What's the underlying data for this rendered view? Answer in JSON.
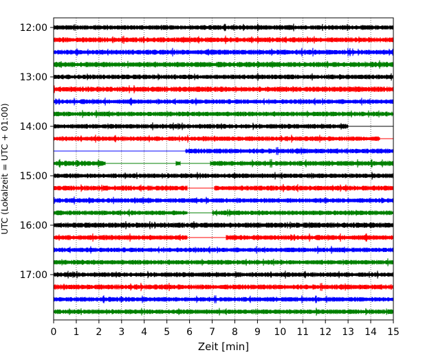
{
  "chart_data": {
    "type": "line",
    "title": "",
    "xlabel": "Zeit  [min]",
    "ylabel": "UTC (Lokalzeit = UTC + 01:00)",
    "xlim": [
      0,
      15
    ],
    "x_ticks": [
      "0",
      "1",
      "2",
      "3",
      "4",
      "5",
      "6",
      "7",
      "8",
      "9",
      "10",
      "11",
      "12",
      "13",
      "14",
      "15"
    ],
    "y_ticks": [
      {
        "label": "12:00",
        "row": 0
      },
      {
        "label": "13:00",
        "row": 4
      },
      {
        "label": "14:00",
        "row": 8
      },
      {
        "label": "15:00",
        "row": 12
      },
      {
        "label": "16:00",
        "row": 16
      },
      {
        "label": "17:00",
        "row": 20
      }
    ],
    "grid": "vertical dotted",
    "colors": [
      "#000000",
      "#ff0000",
      "#0000ff",
      "#008000"
    ],
    "traces": [
      {
        "start": "12:00",
        "amplitude": 3.0,
        "gaps": []
      },
      {
        "start": "12:15",
        "amplitude": 3.2,
        "gaps": []
      },
      {
        "start": "12:30",
        "amplitude": 3.2,
        "gaps": []
      },
      {
        "start": "12:45",
        "amplitude": 3.4,
        "gaps": []
      },
      {
        "start": "13:00",
        "amplitude": 3.0,
        "gaps": []
      },
      {
        "start": "13:15",
        "amplitude": 3.4,
        "gaps": []
      },
      {
        "start": "13:30",
        "amplitude": 3.0,
        "gaps": []
      },
      {
        "start": "13:45",
        "amplitude": 3.0,
        "gaps": []
      },
      {
        "start": "14:00",
        "amplitude": 3.0,
        "gaps": [
          [
            13.0,
            15.0
          ]
        ]
      },
      {
        "start": "14:15",
        "amplitude": 3.0,
        "gaps": [
          [
            14.4,
            15.0
          ]
        ]
      },
      {
        "start": "14:30",
        "amplitude": 3.2,
        "gaps": [
          [
            0.0,
            5.8
          ]
        ]
      },
      {
        "start": "14:45",
        "amplitude": 3.2,
        "gaps": [
          [
            2.3,
            5.4
          ],
          [
            5.6,
            6.9
          ]
        ]
      },
      {
        "start": "15:00",
        "amplitude": 3.0,
        "gaps": []
      },
      {
        "start": "15:15",
        "amplitude": 3.2,
        "gaps": [
          [
            5.9,
            7.1
          ]
        ]
      },
      {
        "start": "15:30",
        "amplitude": 3.0,
        "gaps": []
      },
      {
        "start": "15:45",
        "amplitude": 3.0,
        "gaps": [
          [
            5.9,
            7.0
          ]
        ]
      },
      {
        "start": "16:00",
        "amplitude": 3.4,
        "gaps": []
      },
      {
        "start": "16:15",
        "amplitude": 3.2,
        "gaps": [
          [
            5.9,
            7.6
          ]
        ]
      },
      {
        "start": "16:30",
        "amplitude": 3.0,
        "gaps": []
      },
      {
        "start": "16:45",
        "amplitude": 3.0,
        "gaps": []
      },
      {
        "start": "17:00",
        "amplitude": 3.0,
        "gaps": []
      },
      {
        "start": "17:15",
        "amplitude": 3.2,
        "gaps": []
      },
      {
        "start": "17:30",
        "amplitude": 3.0,
        "gaps": []
      },
      {
        "start": "17:45",
        "amplitude": 3.0,
        "gaps": []
      }
    ]
  }
}
